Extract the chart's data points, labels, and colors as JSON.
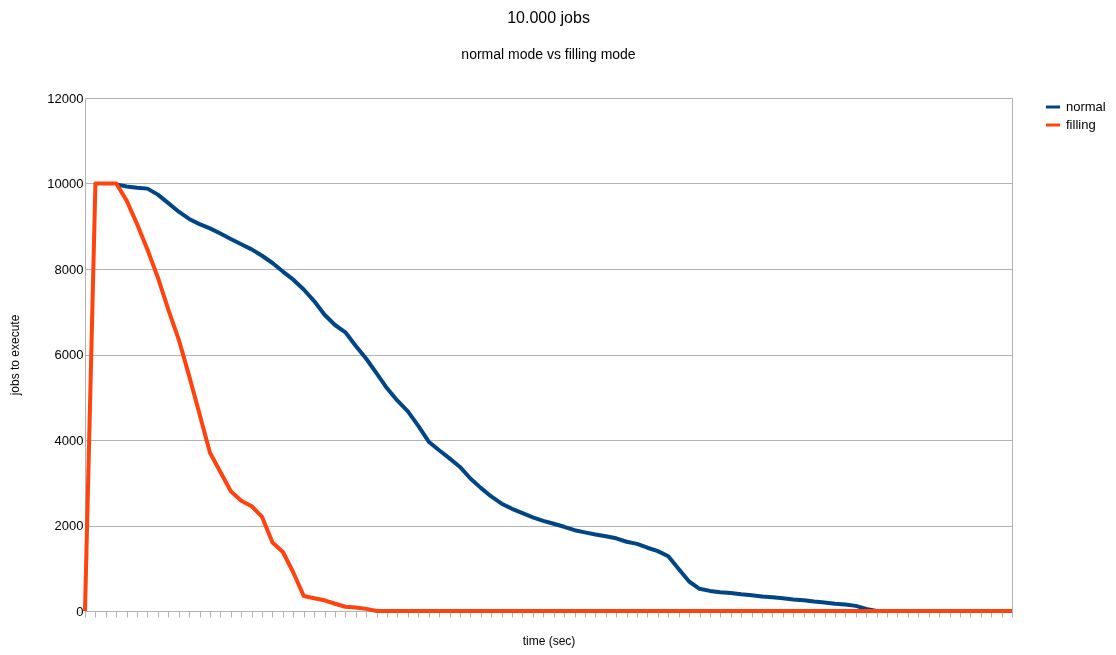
{
  "chart_data": {
    "type": "line",
    "title": "10.000 jobs",
    "subtitle": "normal mode vs filling mode",
    "xlabel": "time (sec)",
    "ylabel": "jobs to execute",
    "categories": [
      null,
      null,
      null,
      null,
      null,
      null,
      null,
      null,
      null,
      null,
      null,
      null,
      null,
      null,
      null,
      null,
      null,
      null,
      null,
      null,
      null,
      null,
      null,
      null,
      null,
      null,
      null,
      null,
      null,
      null,
      null,
      null,
      null,
      null,
      null,
      null,
      null,
      null,
      null,
      null,
      null,
      null,
      null,
      null,
      null,
      null,
      null,
      null,
      null,
      null,
      null,
      null,
      null,
      null,
      null,
      null,
      null,
      null,
      null,
      null,
      null,
      null,
      null,
      null,
      null,
      null,
      null,
      null,
      null,
      null,
      null,
      null,
      null,
      null,
      null,
      null,
      null,
      null,
      null,
      null,
      null,
      null,
      null,
      null,
      null,
      null,
      null,
      null,
      null,
      null
    ],
    "series": [
      {
        "name": "normal",
        "color": "#004586",
        "values": [
          null,
          null,
          null,
          9980,
          9930,
          9900,
          9880,
          9740,
          9540,
          9340,
          9170,
          9050,
          8950,
          8830,
          8700,
          8580,
          8460,
          8310,
          8140,
          7940,
          7750,
          7520,
          7250,
          6930,
          6690,
          6520,
          6200,
          5900,
          5560,
          5210,
          4920,
          4670,
          4330,
          3960,
          3760,
          3570,
          3370,
          3100,
          2880,
          2680,
          2510,
          2390,
          2290,
          2190,
          2110,
          2040,
          1970,
          1890,
          1840,
          1790,
          1750,
          1700,
          1620,
          1570,
          1480,
          1400,
          1280,
          980,
          690,
          520,
          470,
          440,
          420,
          390,
          370,
          340,
          320,
          300,
          270,
          250,
          220,
          200,
          170,
          150,
          120,
          50,
          0,
          0,
          null,
          null,
          null,
          null,
          null,
          null,
          null,
          null,
          null,
          null,
          null,
          null
        ]
      },
      {
        "name": "filling",
        "color": "#ff420e",
        "values": [
          0,
          10000,
          10000,
          10000,
          9600,
          9050,
          8450,
          7800,
          7050,
          6350,
          5500,
          4600,
          3700,
          3250,
          2800,
          2580,
          2450,
          2200,
          1600,
          1380,
          900,
          350,
          300,
          250,
          170,
          100,
          80,
          50,
          0,
          0,
          0,
          0,
          0,
          0,
          0,
          0,
          0,
          0,
          0,
          0,
          0,
          0,
          0,
          0,
          0,
          0,
          0,
          0,
          0,
          0,
          0,
          0,
          0,
          0,
          0,
          0,
          0,
          0,
          0,
          0,
          0,
          0,
          0,
          0,
          0,
          0,
          0,
          0,
          0,
          0,
          0,
          0,
          0,
          0,
          0,
          0,
          0,
          0,
          0,
          0,
          0,
          0,
          0,
          0,
          0,
          0,
          0,
          0,
          0,
          0
        ]
      }
    ],
    "ylim": [
      0,
      12000
    ],
    "yticks": [
      0,
      2000,
      4000,
      6000,
      8000,
      10000,
      12000
    ],
    "grid": "y",
    "legend": "right",
    "tick_labels": "y",
    "marker": "none",
    "line_style": "solid"
  }
}
